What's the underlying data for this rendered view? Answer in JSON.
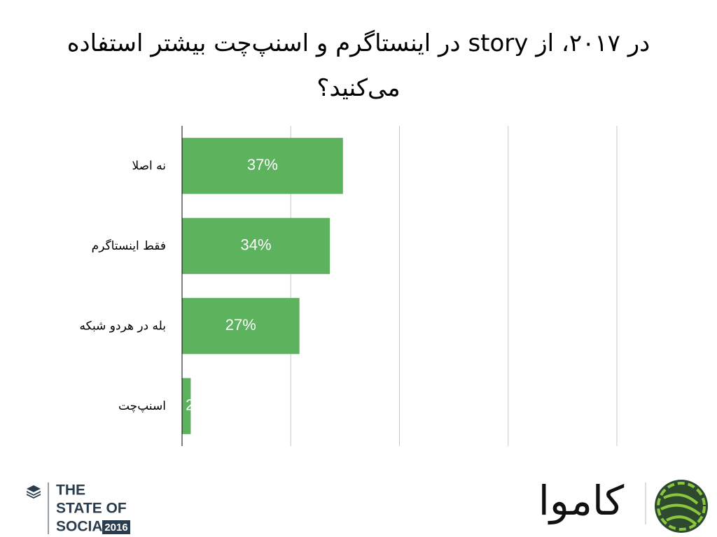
{
  "chart_data": {
    "type": "bar",
    "orientation": "horizontal",
    "title": "در ۲۰۱۷، از story در اینستاگرم و اسنپ‌چت بیشتر استفاده می‌کنید؟",
    "categories": [
      "نه اصلا",
      "فقط اینستاگرم",
      "بله در هردو شبکه",
      "اسنپ‌چت"
    ],
    "values": [
      37,
      34,
      27,
      2
    ],
    "value_labels": [
      "37%",
      "34%",
      "27%",
      "2%"
    ],
    "color": "#5cb25d",
    "xlim": [
      0,
      100
    ],
    "xticks": [
      0,
      25,
      50,
      75,
      100
    ],
    "grid": true
  },
  "footer": {
    "left_logo": {
      "line1": "THE",
      "line2": "STATE OF",
      "line3": "SOCIAL",
      "year": "2016"
    },
    "right_logo": "کاموا"
  }
}
